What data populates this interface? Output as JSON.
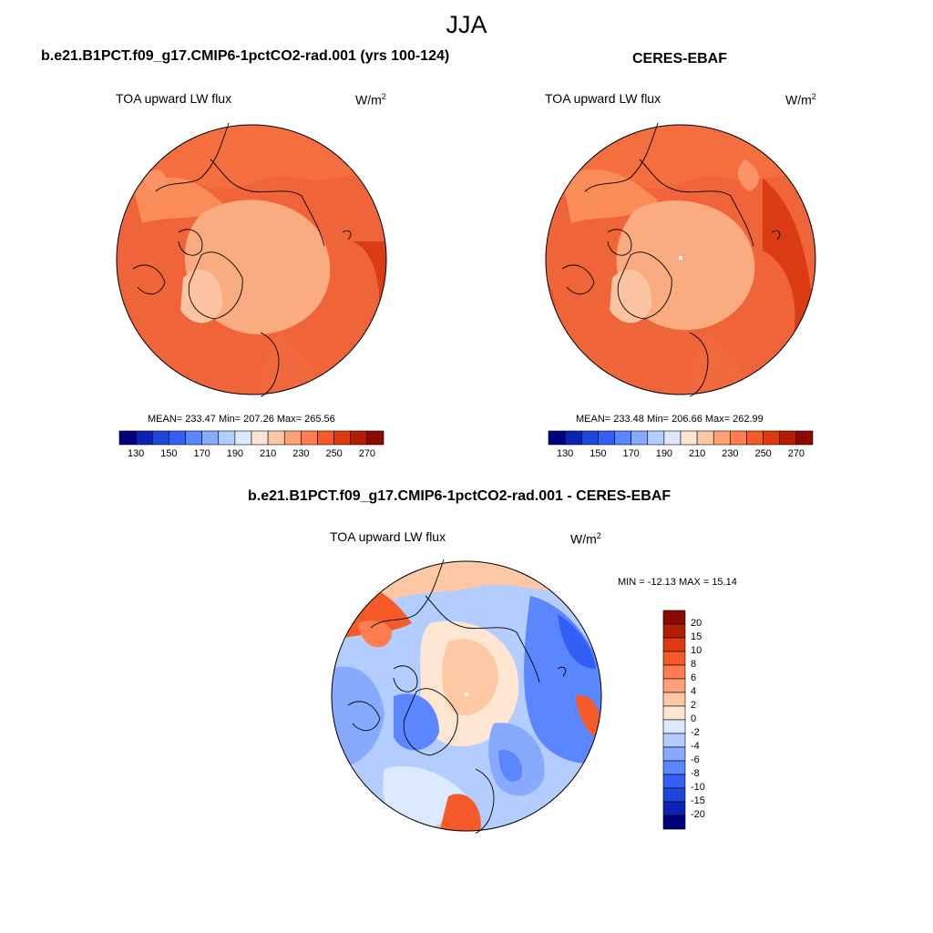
{
  "figure": {
    "title": "JJA",
    "units": {
      "base": "W/m",
      "exp": "2"
    }
  },
  "panels": [
    {
      "id": "model",
      "title": "b.e21.B1PCT.f09_g17.CMIP6-1pctCO2-rad.001 (yrs 100-124)",
      "variable": "TOA upward LW flux",
      "stats": "MEAN= 233.47  Min= 207.26  Max= 265.56",
      "colorbar_ticks": [
        "130",
        "150",
        "170",
        "190",
        "210",
        "230",
        "250",
        "270"
      ]
    },
    {
      "id": "obs",
      "title": "CERES-EBAF",
      "variable": "TOA upward LW flux",
      "stats": "MEAN= 233.48  Min= 206.66  Max= 262.99",
      "colorbar_ticks": [
        "130",
        "150",
        "170",
        "190",
        "210",
        "230",
        "250",
        "270"
      ]
    },
    {
      "id": "diff",
      "title": "b.e21.B1PCT.f09_g17.CMIP6-1pctCO2-rad.001 - CERES-EBAF",
      "variable": "TOA upward LW flux",
      "stats": "MIN = -12.13 MAX =  15.14",
      "colorbar_ticks": [
        "20",
        "15",
        "10",
        "8",
        "6",
        "4",
        "2",
        "0",
        "-2",
        "-4",
        "-6",
        "-8",
        "-10",
        "-15",
        "-20"
      ]
    }
  ],
  "colors": {
    "abs_scale": [
      "#00007f",
      "#0a23b4",
      "#1e46dc",
      "#325ff5",
      "#5a87ff",
      "#87aaff",
      "#b4cdff",
      "#dceaff",
      "#ffe6d2",
      "#ffc8a5",
      "#ffa078",
      "#ff7d50",
      "#f55a28",
      "#dc3c0f",
      "#b41e00",
      "#8c0a00"
    ],
    "diff_scale": [
      "#8c0a00",
      "#b41e00",
      "#dc3c0f",
      "#f55a28",
      "#ff7d50",
      "#ffa078",
      "#ffc8a5",
      "#ffe6d2",
      "#dceaff",
      "#b4cdff",
      "#87aaff",
      "#5a87ff",
      "#325ff5",
      "#1e46dc",
      "#0a23b4",
      "#00007f"
    ]
  }
}
